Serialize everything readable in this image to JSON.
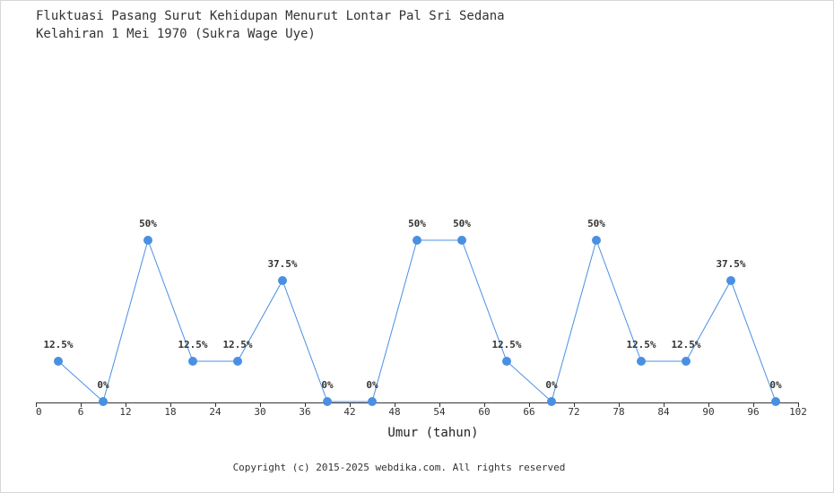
{
  "chart_data": {
    "type": "line",
    "title": "Fluktuasi Pasang Surut Kehidupan Menurut Lontar Pal Sri Sedana",
    "subtitle": "Kelahiran 1 Mei 1970 (Sukra Wage Uye)",
    "xlabel": "Umur (tahun)",
    "ylabel": "",
    "xlim": [
      0,
      102
    ],
    "ylim": [
      0,
      50
    ],
    "x_ticks": [
      0,
      6,
      12,
      18,
      24,
      30,
      36,
      42,
      48,
      54,
      60,
      66,
      72,
      78,
      84,
      90,
      96,
      102
    ],
    "grid": false,
    "series": [
      {
        "x": [
          3,
          9,
          15,
          21,
          27,
          33,
          39,
          45,
          51,
          57,
          63,
          69,
          75,
          81,
          87,
          93,
          99
        ],
        "values": [
          12.5,
          0,
          50,
          12.5,
          12.5,
          37.5,
          0,
          0,
          50,
          50,
          12.5,
          0,
          50,
          12.5,
          12.5,
          37.5,
          0
        ],
        "labels": [
          "12.5%",
          "0%",
          "50%",
          "12.5%",
          "12.5%",
          "37.5%",
          "0%",
          "0%",
          "50%",
          "50%",
          "12.5%",
          "0%",
          "50%",
          "12.5%",
          "12.5%",
          "37.5%",
          "0%"
        ],
        "color": "#4a90e2"
      }
    ]
  },
  "footer": {
    "copyright": "Copyright (c) 2015-2025 webdika.com. All rights reserved"
  }
}
